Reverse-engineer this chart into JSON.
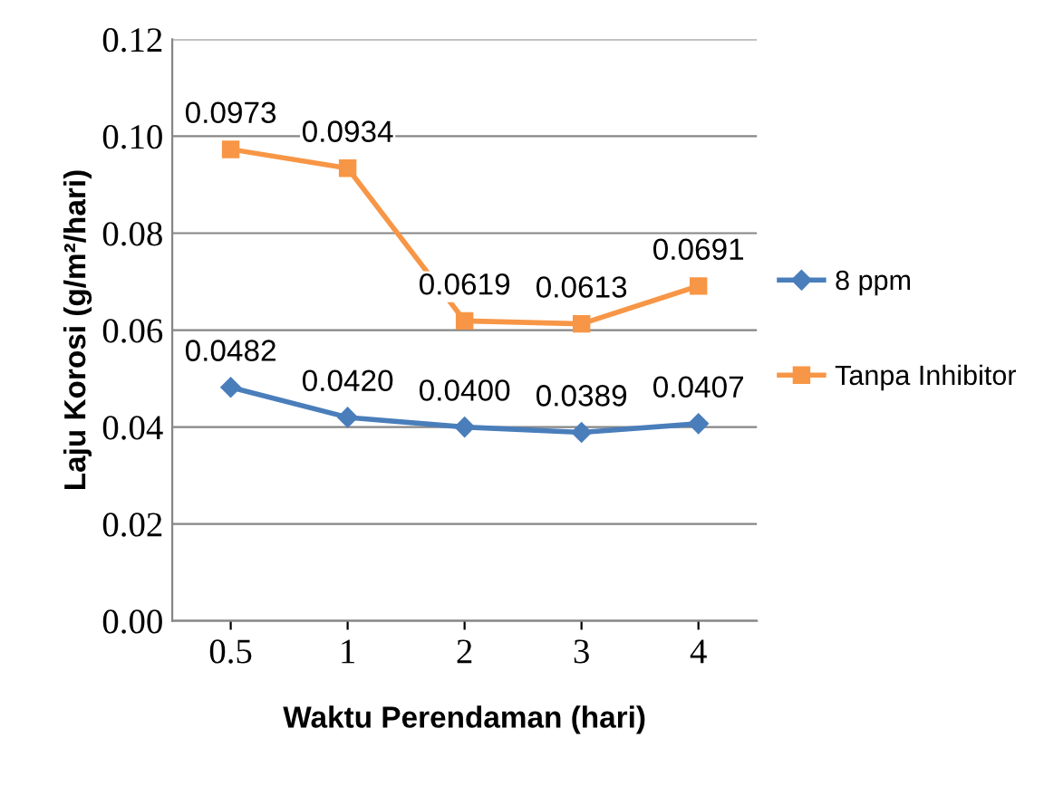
{
  "chart_data": {
    "type": "line",
    "xlabel": "Waktu Perendaman (hari)",
    "ylabel": "Laju Korosi (g/m²/hari)",
    "categories": [
      "0.5",
      "1",
      "2",
      "3",
      "4"
    ],
    "series": [
      {
        "name": "8 ppm",
        "color": "#4a7ebb",
        "marker": "diamond",
        "values": [
          0.0482,
          0.042,
          0.04,
          0.0389,
          0.0407
        ],
        "value_labels": [
          "0.0482",
          "0.0420",
          "0.0400",
          "0.0389",
          "0.0407"
        ]
      },
      {
        "name": "Tanpa Inhibitor",
        "color": "#f79646",
        "marker": "square",
        "values": [
          0.0973,
          0.0934,
          0.0619,
          0.0613,
          0.0691
        ],
        "value_labels": [
          "0.0973",
          "0.0934",
          "0.0619",
          "0.0613",
          "0.0691"
        ]
      }
    ],
    "ylim": [
      0,
      0.12
    ],
    "yticks": [
      {
        "value": 0,
        "label": "0.00"
      },
      {
        "value": 0.02,
        "label": "0.02"
      },
      {
        "value": 0.04,
        "label": "0.04"
      },
      {
        "value": 0.06,
        "label": "0.06"
      },
      {
        "value": 0.08,
        "label": "0.08"
      },
      {
        "value": 0.1,
        "label": "0.10"
      },
      {
        "value": 0.12,
        "label": "0.12"
      }
    ],
    "grid": "y",
    "legend": "right",
    "line_style": "solid"
  }
}
